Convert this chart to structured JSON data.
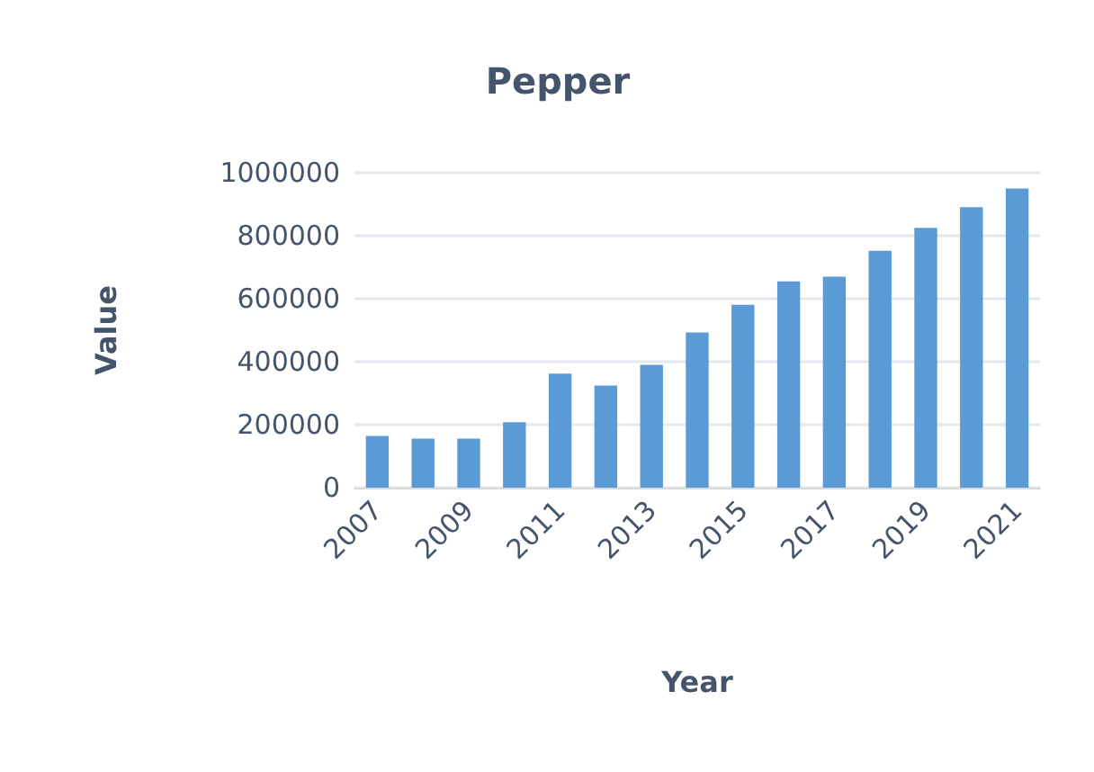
{
  "chart_data": {
    "type": "bar",
    "title": "Pepper",
    "xlabel": "Year",
    "ylabel": "Value",
    "categories": [
      "2007",
      null,
      "2009",
      null,
      "2011",
      null,
      "2013",
      null,
      "2015",
      null,
      "2017",
      null,
      "2019",
      null,
      "2021"
    ],
    "values": [
      164000,
      156000,
      156000,
      208000,
      362000,
      324000,
      390000,
      493000,
      581000,
      655000,
      670000,
      752000,
      825000,
      891000,
      950000
    ],
    "color": "#5b9bd5",
    "ylim": [
      0,
      1000000
    ],
    "yticks": [
      0,
      200000,
      400000,
      600000,
      800000,
      1000000
    ],
    "grid": "y"
  }
}
